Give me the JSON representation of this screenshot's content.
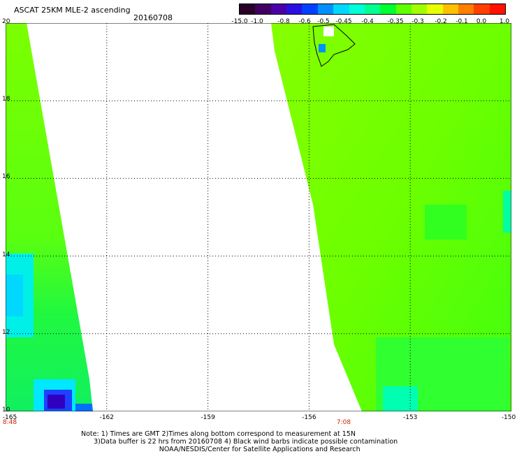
{
  "title": "ASCAT 25KM MLE-2 ascending",
  "date": "20160708",
  "colorbar": {
    "labels": [
      "-15.0",
      "-1.0",
      "-0.8",
      "-0.6",
      "-0.5",
      "-0.45",
      "-0.4",
      "-0.35",
      "-0.3",
      "-0.2",
      "-0.1",
      "0.0",
      "1.0"
    ],
    "colors": [
      "#2a0028",
      "#3f0062",
      "#4a00a6",
      "#2a10e0",
      "#0040ff",
      "#0090ff",
      "#00d8ff",
      "#00ffd8",
      "#00ff90",
      "#00ff30",
      "#60ff00",
      "#a0ff00",
      "#e8ff00",
      "#ffc000",
      "#ff8000",
      "#ff4000",
      "#ff1000"
    ]
  },
  "map": {
    "lat_ticks": [
      "20",
      "18",
      "16",
      "14",
      "12",
      "10"
    ],
    "lon_ticks": [
      "-165",
      "-162",
      "-159",
      "-156",
      "-153",
      "-150"
    ],
    "times": [
      "8:48",
      "7:08"
    ],
    "lat_range": [
      10,
      20
    ],
    "lon_range": [
      -165,
      -150
    ]
  },
  "notes": "Note: 1) Times are GMT 2)Times along bottom correspond to measurement at 15N\n      3)Data buffer is 22 hrs from 20160708 4) Black wind barbs indicate possible contamination\n                                     NOAA/NESDIS/Center for Satellite Applications and Research"
}
